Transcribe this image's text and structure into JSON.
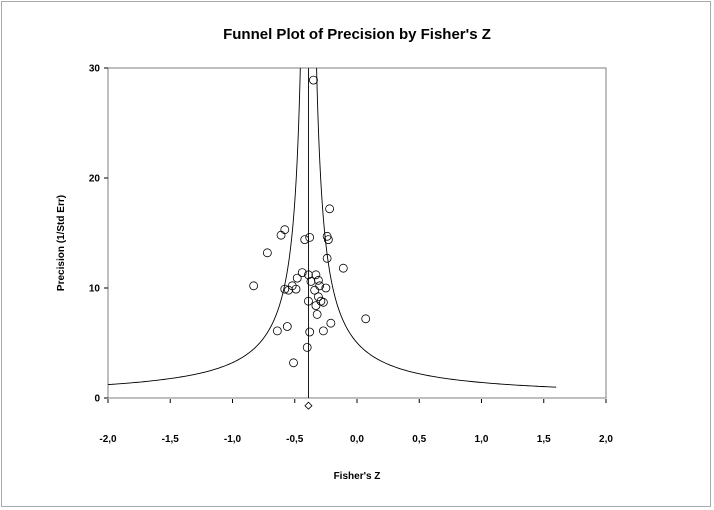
{
  "chart_data": {
    "type": "scatter",
    "title": "Funnel Plot of Precision by Fisher's Z",
    "xlabel": "Fisher's Z",
    "ylabel": "Precision (1/Std Err)",
    "xlim": [
      -2.0,
      2.0
    ],
    "ylim": [
      0,
      30
    ],
    "x_ticks": [
      "-2,0",
      "-1,5",
      "-1,0",
      "-0,5",
      "0,0",
      "0,5",
      "1,0",
      "1,5",
      "2,0"
    ],
    "x_tick_values": [
      -2.0,
      -1.5,
      -1.0,
      -0.5,
      0.0,
      0.5,
      1.0,
      1.5,
      2.0
    ],
    "y_ticks": [
      "0",
      "10",
      "20",
      "30"
    ],
    "y_tick_values": [
      0,
      10,
      20,
      30
    ],
    "grid": false,
    "combined_effect": -0.39,
    "funnel_z_multiplier": 1.96,
    "funnel_x_extent": [
      -2.0,
      1.6
    ],
    "summary_marker": {
      "x": -0.39,
      "y": -0.7,
      "shape": "diamond"
    },
    "series": [
      {
        "marker": "circle",
        "points": [
          {
            "x": -0.35,
            "y": 28.9
          },
          {
            "x": -0.22,
            "y": 17.2
          },
          {
            "x": -0.58,
            "y": 15.3
          },
          {
            "x": -0.61,
            "y": 14.8
          },
          {
            "x": -0.38,
            "y": 14.6
          },
          {
            "x": -0.42,
            "y": 14.4
          },
          {
            "x": -0.24,
            "y": 14.7
          },
          {
            "x": -0.23,
            "y": 14.4
          },
          {
            "x": -0.72,
            "y": 13.2
          },
          {
            "x": -0.24,
            "y": 12.7
          },
          {
            "x": -0.11,
            "y": 11.8
          },
          {
            "x": -0.44,
            "y": 11.4
          },
          {
            "x": -0.39,
            "y": 11.2
          },
          {
            "x": -0.33,
            "y": 11.2
          },
          {
            "x": -0.48,
            "y": 10.9
          },
          {
            "x": -0.31,
            "y": 10.7
          },
          {
            "x": -0.37,
            "y": 10.6
          },
          {
            "x": -0.3,
            "y": 10.2
          },
          {
            "x": -0.52,
            "y": 10.2
          },
          {
            "x": -0.83,
            "y": 10.2
          },
          {
            "x": -0.58,
            "y": 9.9
          },
          {
            "x": -0.55,
            "y": 9.8
          },
          {
            "x": -0.49,
            "y": 9.9
          },
          {
            "x": -0.34,
            "y": 9.8
          },
          {
            "x": -0.25,
            "y": 10.0
          },
          {
            "x": -0.31,
            "y": 9.2
          },
          {
            "x": -0.29,
            "y": 8.8
          },
          {
            "x": -0.39,
            "y": 8.8
          },
          {
            "x": -0.27,
            "y": 8.7
          },
          {
            "x": -0.33,
            "y": 8.4
          },
          {
            "x": -0.32,
            "y": 7.6
          },
          {
            "x": 0.07,
            "y": 7.2
          },
          {
            "x": -0.21,
            "y": 6.8
          },
          {
            "x": -0.56,
            "y": 6.5
          },
          {
            "x": -0.64,
            "y": 6.1
          },
          {
            "x": -0.38,
            "y": 6.0
          },
          {
            "x": -0.27,
            "y": 6.1
          },
          {
            "x": -0.4,
            "y": 4.6
          },
          {
            "x": -0.51,
            "y": 3.2
          }
        ]
      }
    ]
  }
}
